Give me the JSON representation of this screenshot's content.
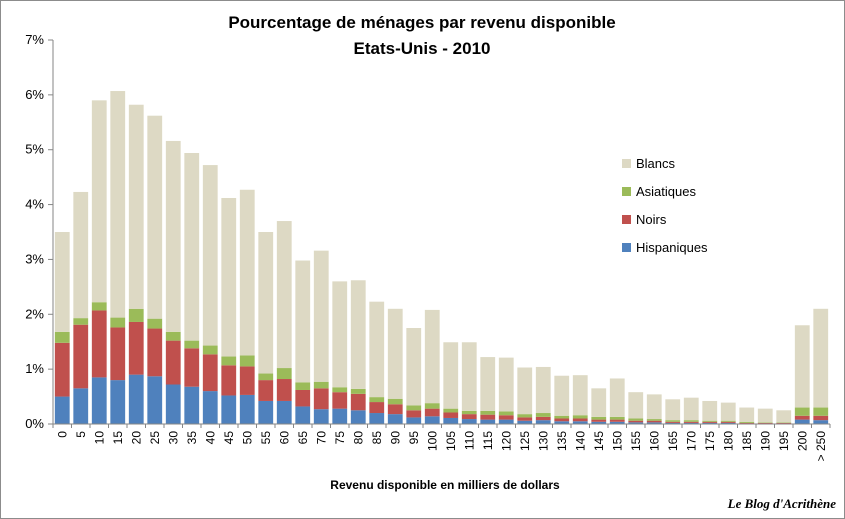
{
  "chart_data": {
    "type": "bar",
    "stacked": true,
    "title": "Pourcentage de ménages par revenu disponible",
    "subtitle": "Etats-Unis  - 2010",
    "xlabel": "Revenu disponible en milliers de dollars",
    "ylabel": "",
    "ylim": [
      0,
      7
    ],
    "yticks": [
      "0%",
      "1%",
      "2%",
      "3%",
      "4%",
      "5%",
      "6%",
      "7%"
    ],
    "y_unit": "%",
    "grid": false,
    "legend_position": "right",
    "categories": [
      "0",
      "5",
      "10",
      "15",
      "20",
      "25",
      "30",
      "35",
      "40",
      "45",
      "50",
      "55",
      "60",
      "65",
      "70",
      "75",
      "80",
      "85",
      "90",
      "95",
      "100",
      "105",
      "110",
      "115",
      "120",
      "125",
      "130",
      "135",
      "140",
      "145",
      "150",
      "155",
      "160",
      "165",
      "170",
      "175",
      "180",
      "185",
      "190",
      "195",
      "200",
      "> 250"
    ],
    "series": [
      {
        "name": "Hispaniques",
        "color": "#4f81bd",
        "values": [
          0.5,
          0.65,
          0.85,
          0.8,
          0.9,
          0.87,
          0.72,
          0.68,
          0.6,
          0.52,
          0.53,
          0.42,
          0.42,
          0.32,
          0.27,
          0.28,
          0.25,
          0.2,
          0.18,
          0.12,
          0.14,
          0.11,
          0.09,
          0.08,
          0.08,
          0.06,
          0.07,
          0.05,
          0.05,
          0.04,
          0.04,
          0.03,
          0.03,
          0.02,
          0.02,
          0.02,
          0.02,
          0.01,
          0.01,
          0.01,
          0.08,
          0.07
        ]
      },
      {
        "name": "Noirs",
        "color": "#c0504d",
        "values": [
          0.98,
          1.16,
          1.22,
          0.96,
          0.96,
          0.87,
          0.8,
          0.7,
          0.67,
          0.55,
          0.52,
          0.38,
          0.4,
          0.3,
          0.38,
          0.3,
          0.3,
          0.2,
          0.18,
          0.13,
          0.14,
          0.1,
          0.09,
          0.09,
          0.08,
          0.06,
          0.06,
          0.05,
          0.05,
          0.04,
          0.04,
          0.03,
          0.03,
          0.02,
          0.02,
          0.02,
          0.02,
          0.01,
          0.01,
          0.01,
          0.07,
          0.08
        ]
      },
      {
        "name": "Asiatiques",
        "color": "#9bbb59",
        "values": [
          0.2,
          0.12,
          0.15,
          0.18,
          0.24,
          0.18,
          0.16,
          0.14,
          0.16,
          0.16,
          0.2,
          0.12,
          0.2,
          0.14,
          0.12,
          0.09,
          0.09,
          0.09,
          0.1,
          0.09,
          0.1,
          0.07,
          0.06,
          0.07,
          0.07,
          0.06,
          0.07,
          0.05,
          0.06,
          0.05,
          0.05,
          0.04,
          0.03,
          0.03,
          0.03,
          0.02,
          0.02,
          0.02,
          0.01,
          0.01,
          0.15,
          0.15
        ]
      },
      {
        "name": "Blancs",
        "color": "#ddd9c4",
        "values": [
          1.82,
          2.3,
          3.68,
          4.13,
          3.72,
          3.7,
          3.48,
          3.42,
          3.29,
          2.89,
          3.02,
          2.58,
          2.68,
          2.22,
          2.39,
          1.93,
          1.98,
          1.74,
          1.64,
          1.41,
          1.7,
          1.21,
          1.25,
          0.98,
          0.98,
          0.85,
          0.84,
          0.73,
          0.73,
          0.52,
          0.7,
          0.48,
          0.45,
          0.38,
          0.41,
          0.36,
          0.33,
          0.26,
          0.25,
          0.22,
          1.5,
          1.8
        ]
      }
    ]
  },
  "credit": "Le Blog d'Acrithène"
}
